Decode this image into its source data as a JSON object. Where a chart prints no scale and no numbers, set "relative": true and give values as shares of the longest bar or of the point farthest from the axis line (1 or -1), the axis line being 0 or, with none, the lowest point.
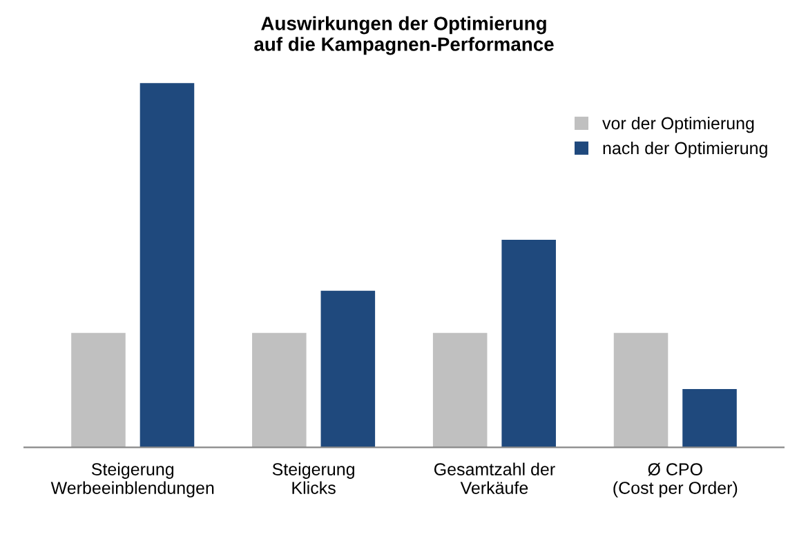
{
  "chart_data": {
    "type": "bar",
    "title": "Auswirkungen der Optimierung\nauf die Kampagnen-Performance",
    "relative": true,
    "categories": [
      "Steigerung\nWerbeeinblendungen",
      "Steigerung\nKlicks",
      "Gesamtzahl der\nVerkäufe",
      "Ø CPO\n(Cost per Order)"
    ],
    "series": [
      {
        "name": "vor der Optimierung",
        "color": "#c0c0c0",
        "values": [
          0.314,
          0.314,
          0.314,
          0.314
        ]
      },
      {
        "name": "nach der Optimierung",
        "color": "#1f497d",
        "values": [
          1,
          0.43,
          0.57,
          0.16
        ]
      }
    ],
    "legend": "top right",
    "grid": false
  }
}
